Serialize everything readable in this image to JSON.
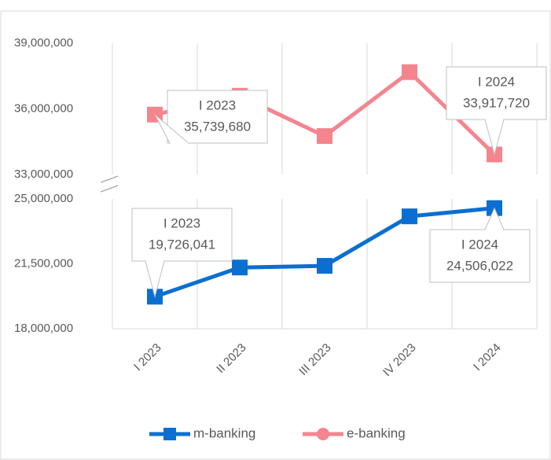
{
  "chart_data": [
    {
      "type": "line",
      "ylim": [
        33000000,
        39000000
      ],
      "yticks": [
        {
          "value": 33000000,
          "label": "33,000,000"
        },
        {
          "value": 36000000,
          "label": "36,000,000"
        },
        {
          "value": 39000000,
          "label": "39,000,000"
        }
      ],
      "series": [
        {
          "name": "e-banking",
          "color": "#f4858f",
          "values": [
            35739680,
            36600000,
            34760000,
            37680000,
            33917720
          ],
          "value_labels": [
            "35,739,680",
            null,
            null,
            null,
            "33,917,720"
          ]
        }
      ]
    },
    {
      "type": "line",
      "categories": [
        "I 2023",
        "II 2023",
        "III 2023",
        "IV 2023",
        "I 2024"
      ],
      "ylim": [
        18000000,
        25000000
      ],
      "yticks": [
        {
          "value": 18000000,
          "label": "18,000,000"
        },
        {
          "value": 21500000,
          "label": "21,500,000"
        },
        {
          "value": 25000000,
          "label": "25,000,000"
        }
      ],
      "series": [
        {
          "name": "m-banking",
          "color": "#0b6fd1",
          "values": [
            19726041,
            21300000,
            21390000,
            24060000,
            24506022
          ],
          "value_labels": [
            "19,726,041",
            null,
            null,
            null,
            "24,506,022"
          ]
        }
      ]
    }
  ]
}
